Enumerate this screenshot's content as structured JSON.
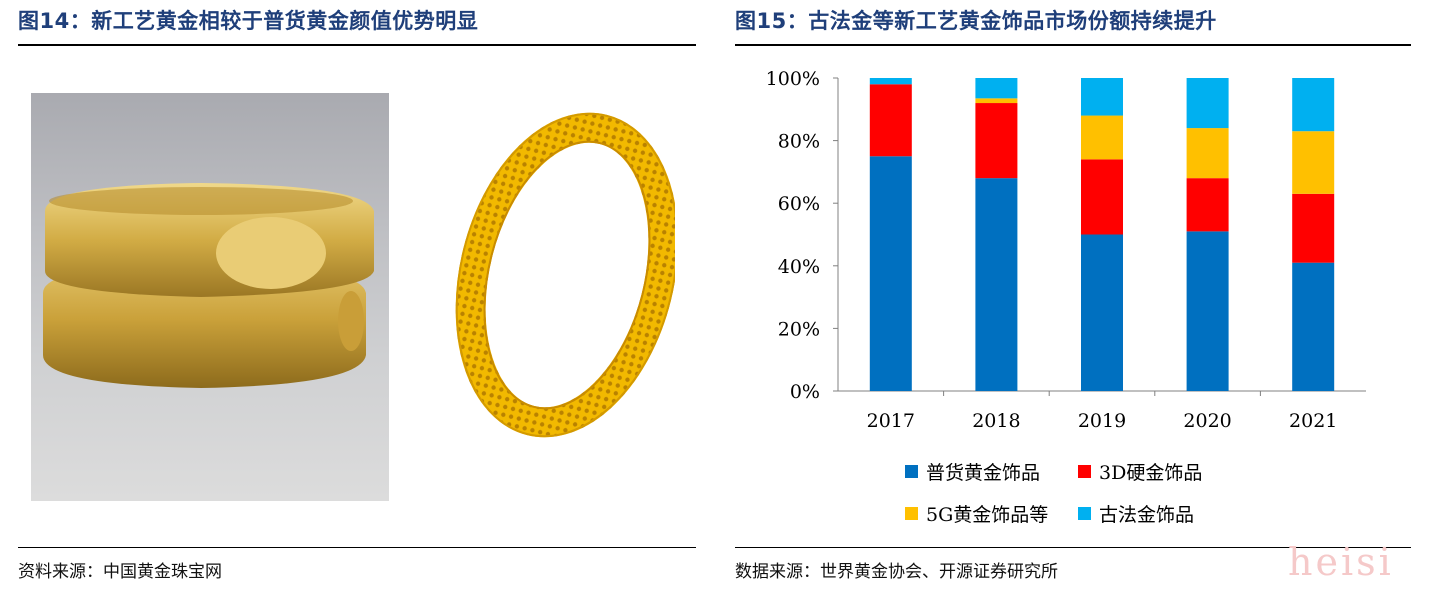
{
  "left_figure": {
    "title": "图14：新工艺黄金相较于普货黄金颜值优势明显",
    "source": "资料来源：中国黄金珠宝网"
  },
  "right_figure": {
    "title": "图15：古法金等新工艺黄金饰品市场份额持续提升",
    "source": "数据来源：世界黄金协会、开源证券研究所"
  },
  "watermark": "heisi",
  "chart_data": {
    "type": "bar",
    "stacked": true,
    "title": "",
    "xlabel": "",
    "ylabel": "",
    "categories": [
      "2017",
      "2018",
      "2019",
      "2020",
      "2021"
    ],
    "ylim": [
      0,
      100
    ],
    "yticks": [
      "0%",
      "20%",
      "40%",
      "60%",
      "80%",
      "100%"
    ],
    "series": [
      {
        "name": "普货黄金饰品",
        "color": "#0070c0",
        "values": [
          75,
          68,
          50,
          51,
          41
        ]
      },
      {
        "name": "3D硬金饰品",
        "color": "#ff0000",
        "values": [
          23,
          24,
          24,
          17,
          22
        ]
      },
      {
        "name": "5G黄金饰品等",
        "color": "#ffc000",
        "values": [
          0,
          1.5,
          14,
          16,
          20
        ]
      },
      {
        "name": "古法金饰品",
        "color": "#00b0f0",
        "values": [
          2,
          6.5,
          12,
          16,
          17
        ]
      }
    ],
    "legend_position": "bottom",
    "grid": false
  }
}
